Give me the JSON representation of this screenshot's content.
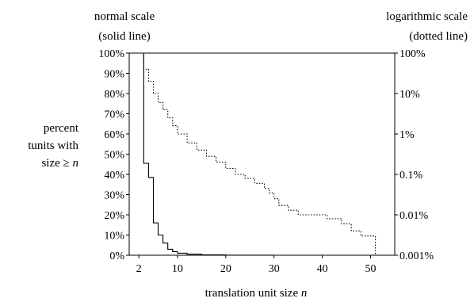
{
  "chart_data": {
    "type": "line",
    "left_axis": {
      "title_lines": [
        "normal scale",
        "(solid line)"
      ],
      "ticks": [
        "0%",
        "10%",
        "20%",
        "30%",
        "40%",
        "50%",
        "60%",
        "70%",
        "80%",
        "90%",
        "100%"
      ],
      "range": [
        0,
        100
      ]
    },
    "right_axis": {
      "title_lines": [
        "logarithmic scale",
        "(dotted line)"
      ],
      "ticks": [
        "0.001%",
        "0.01%",
        "0.1%",
        "1%",
        "10%",
        "100%"
      ],
      "scale": "log",
      "range": [
        0.001,
        100
      ]
    },
    "y_title_lines": [
      "percent",
      "tunits with",
      "size ≥ "
    ],
    "y_title_var": "n",
    "x_axis": {
      "title": "translation unit size ",
      "title_var": "n",
      "ticks": [
        "2",
        "10",
        "20",
        "30",
        "40",
        "50"
      ],
      "range": [
        0,
        55
      ]
    },
    "grid": false,
    "series": [
      {
        "style": "solid",
        "axis": "left",
        "x": [
          1,
          2,
          3,
          4,
          5,
          6,
          7,
          8,
          9,
          10,
          12,
          15,
          20,
          30,
          52
        ],
        "y": [
          100,
          100,
          45.5,
          38.5,
          16,
          10,
          6,
          3,
          1.8,
          1,
          0.5,
          0.2,
          0.05,
          0.01,
          0
        ]
      },
      {
        "style": "dotted",
        "axis": "right",
        "x": [
          1,
          2,
          3,
          4,
          5,
          6,
          7,
          8,
          9,
          10,
          12,
          14,
          16,
          18,
          20,
          22,
          24,
          26,
          28,
          29,
          30,
          31,
          33,
          35,
          38,
          41,
          44,
          46,
          48,
          51
        ],
        "y": [
          100,
          100,
          40,
          20,
          10,
          6,
          4,
          2.5,
          1.6,
          1,
          0.6,
          0.4,
          0.28,
          0.2,
          0.14,
          0.1,
          0.08,
          0.06,
          0.045,
          0.035,
          0.025,
          0.017,
          0.013,
          0.01,
          0.01,
          0.008,
          0.006,
          0.004,
          0.003,
          0.001
        ]
      }
    ]
  }
}
